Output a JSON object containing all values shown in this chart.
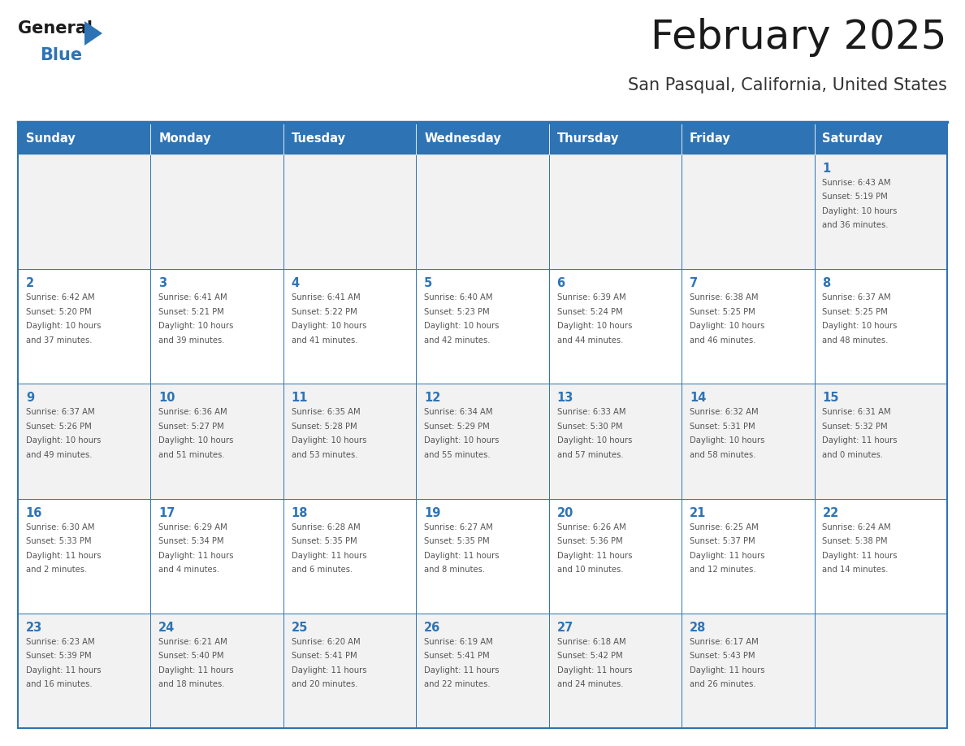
{
  "title": "February 2025",
  "subtitle": "San Pasqual, California, United States",
  "days_of_week": [
    "Sunday",
    "Monday",
    "Tuesday",
    "Wednesday",
    "Thursday",
    "Friday",
    "Saturday"
  ],
  "header_bg": "#2E74B5",
  "header_text": "#FFFFFF",
  "row_bg_odd": "#F2F2F2",
  "row_bg_even": "#FFFFFF",
  "cell_text_color": "#555555",
  "day_num_color": "#2E74B5",
  "border_color": "#2E74B5",
  "title_color": "#1a1a1a",
  "subtitle_color": "#333333",
  "calendar_data": {
    "1": {
      "sunrise": "6:43 AM",
      "sunset": "5:19 PM",
      "daylight": "10 hours and 36 minutes."
    },
    "2": {
      "sunrise": "6:42 AM",
      "sunset": "5:20 PM",
      "daylight": "10 hours and 37 minutes."
    },
    "3": {
      "sunrise": "6:41 AM",
      "sunset": "5:21 PM",
      "daylight": "10 hours and 39 minutes."
    },
    "4": {
      "sunrise": "6:41 AM",
      "sunset": "5:22 PM",
      "daylight": "10 hours and 41 minutes."
    },
    "5": {
      "sunrise": "6:40 AM",
      "sunset": "5:23 PM",
      "daylight": "10 hours and 42 minutes."
    },
    "6": {
      "sunrise": "6:39 AM",
      "sunset": "5:24 PM",
      "daylight": "10 hours and 44 minutes."
    },
    "7": {
      "sunrise": "6:38 AM",
      "sunset": "5:25 PM",
      "daylight": "10 hours and 46 minutes."
    },
    "8": {
      "sunrise": "6:37 AM",
      "sunset": "5:25 PM",
      "daylight": "10 hours and 48 minutes."
    },
    "9": {
      "sunrise": "6:37 AM",
      "sunset": "5:26 PM",
      "daylight": "10 hours and 49 minutes."
    },
    "10": {
      "sunrise": "6:36 AM",
      "sunset": "5:27 PM",
      "daylight": "10 hours and 51 minutes."
    },
    "11": {
      "sunrise": "6:35 AM",
      "sunset": "5:28 PM",
      "daylight": "10 hours and 53 minutes."
    },
    "12": {
      "sunrise": "6:34 AM",
      "sunset": "5:29 PM",
      "daylight": "10 hours and 55 minutes."
    },
    "13": {
      "sunrise": "6:33 AM",
      "sunset": "5:30 PM",
      "daylight": "10 hours and 57 minutes."
    },
    "14": {
      "sunrise": "6:32 AM",
      "sunset": "5:31 PM",
      "daylight": "10 hours and 58 minutes."
    },
    "15": {
      "sunrise": "6:31 AM",
      "sunset": "5:32 PM",
      "daylight": "11 hours and 0 minutes."
    },
    "16": {
      "sunrise": "6:30 AM",
      "sunset": "5:33 PM",
      "daylight": "11 hours and 2 minutes."
    },
    "17": {
      "sunrise": "6:29 AM",
      "sunset": "5:34 PM",
      "daylight": "11 hours and 4 minutes."
    },
    "18": {
      "sunrise": "6:28 AM",
      "sunset": "5:35 PM",
      "daylight": "11 hours and 6 minutes."
    },
    "19": {
      "sunrise": "6:27 AM",
      "sunset": "5:35 PM",
      "daylight": "11 hours and 8 minutes."
    },
    "20": {
      "sunrise": "6:26 AM",
      "sunset": "5:36 PM",
      "daylight": "11 hours and 10 minutes."
    },
    "21": {
      "sunrise": "6:25 AM",
      "sunset": "5:37 PM",
      "daylight": "11 hours and 12 minutes."
    },
    "22": {
      "sunrise": "6:24 AM",
      "sunset": "5:38 PM",
      "daylight": "11 hours and 14 minutes."
    },
    "23": {
      "sunrise": "6:23 AM",
      "sunset": "5:39 PM",
      "daylight": "11 hours and 16 minutes."
    },
    "24": {
      "sunrise": "6:21 AM",
      "sunset": "5:40 PM",
      "daylight": "11 hours and 18 minutes."
    },
    "25": {
      "sunrise": "6:20 AM",
      "sunset": "5:41 PM",
      "daylight": "11 hours and 20 minutes."
    },
    "26": {
      "sunrise": "6:19 AM",
      "sunset": "5:41 PM",
      "daylight": "11 hours and 22 minutes."
    },
    "27": {
      "sunrise": "6:18 AM",
      "sunset": "5:42 PM",
      "daylight": "11 hours and 24 minutes."
    },
    "28": {
      "sunrise": "6:17 AM",
      "sunset": "5:43 PM",
      "daylight": "11 hours and 26 minutes."
    }
  },
  "weeks": [
    [
      null,
      null,
      null,
      null,
      null,
      null,
      1
    ],
    [
      2,
      3,
      4,
      5,
      6,
      7,
      8
    ],
    [
      9,
      10,
      11,
      12,
      13,
      14,
      15
    ],
    [
      16,
      17,
      18,
      19,
      20,
      21,
      22
    ],
    [
      23,
      24,
      25,
      26,
      27,
      28,
      null
    ]
  ]
}
